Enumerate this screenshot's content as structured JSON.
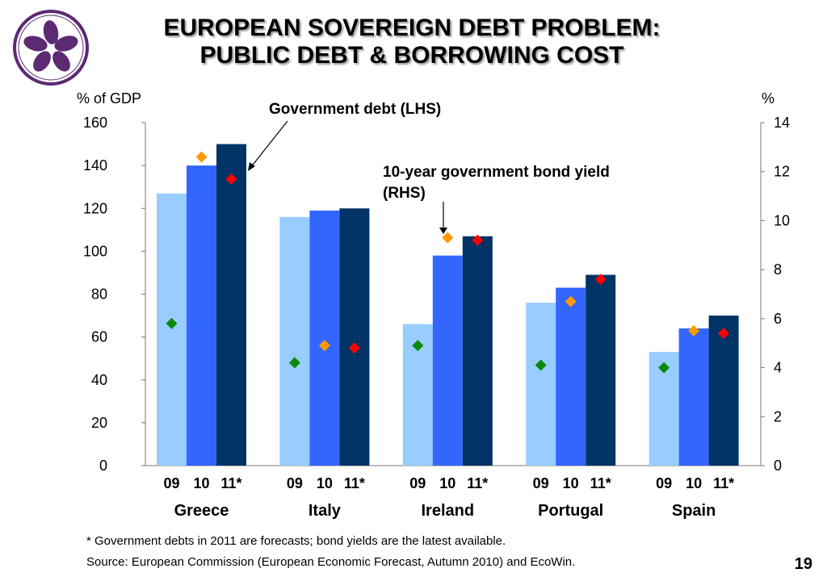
{
  "slide": {
    "title_line1": "EUROPEAN SOVEREIGN DEBT PROBLEM:",
    "title_line2": "PUBLIC DEBT & BORROWING COST",
    "page_number": "19",
    "footnote": "* Government debts in 2011 are forecasts; bond yields are the latest available.",
    "source": "Source: European Commission (European Economic Forecast, Autumn 2010) and EcoWin.",
    "logo_icon": "bauhinia-flower-icon"
  },
  "colors": {
    "bar_09": "#99ccff",
    "bar_10": "#3366ff",
    "bar_11": "#003366",
    "yield_09": "#0a8a0a",
    "yield_10": "#ff9900",
    "yield_11": "#ff0000",
    "logo_purple": "#5c2a72"
  },
  "chart_data": {
    "type": "bar",
    "ylabel_left": "% of GDP",
    "ylabel_right": "%",
    "ylim_left": [
      0,
      160
    ],
    "ylim_right": [
      0,
      14
    ],
    "yticks_left": [
      "0",
      "20",
      "40",
      "60",
      "80",
      "100",
      "120",
      "140",
      "160"
    ],
    "yticks_right": [
      "0",
      "2",
      "4",
      "6",
      "8",
      "10",
      "12",
      "14"
    ],
    "countries": [
      "Greece",
      "Italy",
      "Ireland",
      "Portugal",
      "Spain"
    ],
    "year_labels": [
      "09",
      "10",
      "11*"
    ],
    "debt_series": [
      {
        "year": "09",
        "values": [
          127,
          116,
          66,
          76,
          53
        ]
      },
      {
        "year": "10",
        "values": [
          140,
          119,
          98,
          83,
          64
        ]
      },
      {
        "year": "11*",
        "values": [
          150,
          120,
          107,
          89,
          70
        ]
      }
    ],
    "yield_series": [
      {
        "year": "09",
        "values": [
          5.8,
          4.2,
          4.9,
          4.1,
          4.0
        ]
      },
      {
        "year": "10",
        "values": [
          12.6,
          4.9,
          9.3,
          6.7,
          5.5
        ]
      },
      {
        "year": "11*",
        "values": [
          11.7,
          4.8,
          9.2,
          7.6,
          5.4
        ]
      }
    ],
    "annotations": {
      "debt": "Government debt (LHS)",
      "yield_line1": "10-year government bond yield",
      "yield_line2": "(RHS)"
    }
  }
}
